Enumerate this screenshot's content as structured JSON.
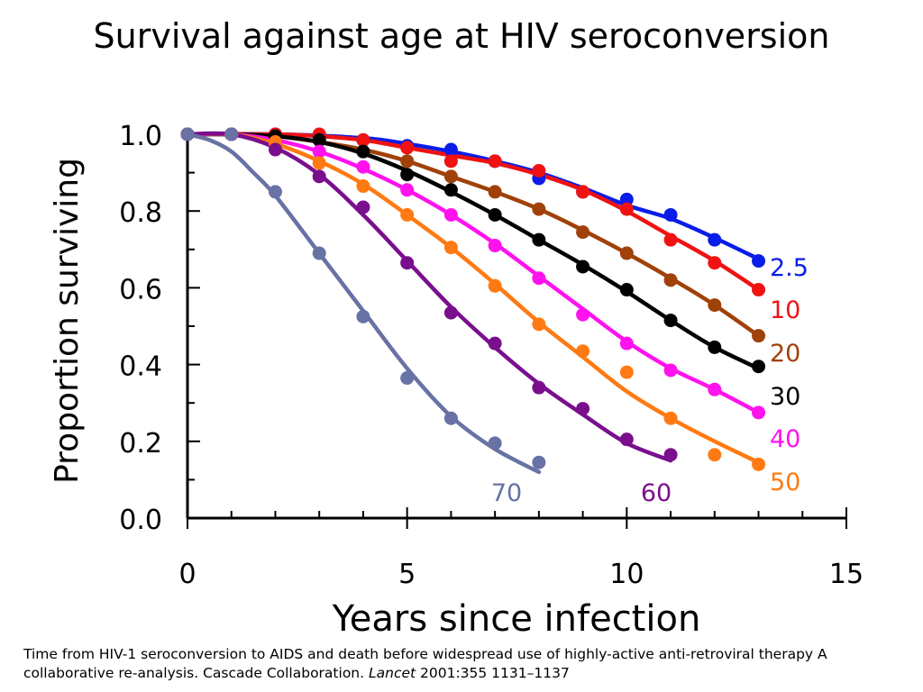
{
  "chart_data": {
    "type": "line",
    "title": "Survival against age at HIV seroconversion",
    "xlabel": "Years since infection",
    "ylabel": "Proportion surviving",
    "xlim": [
      0,
      15
    ],
    "ylim": [
      0,
      1.0
    ],
    "x_ticks": [
      "0",
      "5",
      "10",
      "15"
    ],
    "y_ticks": [
      "0.0",
      "0.2",
      "0.4",
      "0.6",
      "0.8",
      "1.0"
    ],
    "grid": false,
    "legend": "inline labels at line ends",
    "series": [
      {
        "name": "2.5",
        "color": "#0a1de8",
        "points": [
          [
            0,
            1.0
          ],
          [
            1,
            1.0
          ],
          [
            2,
            1.0
          ],
          [
            3,
            0.995
          ],
          [
            4,
            0.985
          ],
          [
            5,
            0.97
          ],
          [
            6,
            0.96
          ],
          [
            7,
            0.93
          ],
          [
            8,
            0.885
          ],
          [
            9,
            0.85
          ],
          [
            10,
            0.83
          ],
          [
            11,
            0.79
          ],
          [
            12,
            0.725
          ],
          [
            13,
            0.67
          ]
        ],
        "curve": [
          [
            0,
            1.0
          ],
          [
            2,
            1.0
          ],
          [
            4,
            0.99
          ],
          [
            5,
            0.975
          ],
          [
            6,
            0.955
          ],
          [
            7,
            0.93
          ],
          [
            8,
            0.9
          ],
          [
            9,
            0.86
          ],
          [
            10,
            0.815
          ],
          [
            11,
            0.78
          ],
          [
            12,
            0.73
          ],
          [
            13,
            0.675
          ]
        ]
      },
      {
        "name": "10",
        "color": "#f01212",
        "points": [
          [
            0,
            1.0
          ],
          [
            1,
            1.0
          ],
          [
            2,
            1.0
          ],
          [
            3,
            1.0
          ],
          [
            4,
            0.985
          ],
          [
            5,
            0.965
          ],
          [
            6,
            0.93
          ],
          [
            7,
            0.93
          ],
          [
            8,
            0.905
          ],
          [
            9,
            0.85
          ],
          [
            10,
            0.805
          ],
          [
            11,
            0.725
          ],
          [
            12,
            0.665
          ],
          [
            13,
            0.595
          ]
        ],
        "curve": [
          [
            0,
            1.0
          ],
          [
            2,
            1.0
          ],
          [
            3,
            0.995
          ],
          [
            4,
            0.985
          ],
          [
            5,
            0.965
          ],
          [
            6,
            0.945
          ],
          [
            7,
            0.925
          ],
          [
            8,
            0.895
          ],
          [
            9,
            0.855
          ],
          [
            10,
            0.8
          ],
          [
            11,
            0.735
          ],
          [
            12,
            0.67
          ],
          [
            13,
            0.595
          ]
        ]
      },
      {
        "name": "20",
        "color": "#a0410a",
        "points": [
          [
            0,
            1.0
          ],
          [
            1,
            1.0
          ],
          [
            2,
            0.995
          ],
          [
            3,
            0.985
          ],
          [
            4,
            0.955
          ],
          [
            5,
            0.93
          ],
          [
            6,
            0.89
          ],
          [
            7,
            0.85
          ],
          [
            8,
            0.805
          ],
          [
            9,
            0.745
          ],
          [
            10,
            0.69
          ],
          [
            11,
            0.62
          ],
          [
            12,
            0.555
          ],
          [
            13,
            0.475
          ]
        ],
        "curve": [
          [
            0,
            1.0
          ],
          [
            1,
            1.0
          ],
          [
            2,
            0.995
          ],
          [
            3,
            0.98
          ],
          [
            4,
            0.96
          ],
          [
            5,
            0.93
          ],
          [
            6,
            0.89
          ],
          [
            7,
            0.85
          ],
          [
            8,
            0.805
          ],
          [
            9,
            0.75
          ],
          [
            10,
            0.69
          ],
          [
            11,
            0.625
          ],
          [
            12,
            0.555
          ],
          [
            13,
            0.475
          ]
        ]
      },
      {
        "name": "30",
        "color": "#000000",
        "points": [
          [
            0,
            1.0
          ],
          [
            1,
            1.0
          ],
          [
            2,
            0.995
          ],
          [
            3,
            0.985
          ],
          [
            4,
            0.955
          ],
          [
            5,
            0.895
          ],
          [
            6,
            0.855
          ],
          [
            7,
            0.79
          ],
          [
            8,
            0.725
          ],
          [
            9,
            0.655
          ],
          [
            10,
            0.595
          ],
          [
            11,
            0.515
          ],
          [
            12,
            0.445
          ],
          [
            13,
            0.395
          ]
        ],
        "curve": [
          [
            0,
            1.0
          ],
          [
            1,
            1.0
          ],
          [
            2,
            0.995
          ],
          [
            3,
            0.98
          ],
          [
            4,
            0.95
          ],
          [
            5,
            0.905
          ],
          [
            6,
            0.85
          ],
          [
            7,
            0.79
          ],
          [
            8,
            0.725
          ],
          [
            9,
            0.66
          ],
          [
            10,
            0.59
          ],
          [
            11,
            0.515
          ],
          [
            12,
            0.445
          ],
          [
            13,
            0.39
          ]
        ]
      },
      {
        "name": "40",
        "color": "#ff12ee",
        "points": [
          [
            0,
            1.0
          ],
          [
            1,
            1.0
          ],
          [
            2,
            0.975
          ],
          [
            3,
            0.955
          ],
          [
            4,
            0.915
          ],
          [
            5,
            0.855
          ],
          [
            6,
            0.79
          ],
          [
            7,
            0.71
          ],
          [
            8,
            0.625
          ],
          [
            9,
            0.53
          ],
          [
            10,
            0.455
          ],
          [
            11,
            0.385
          ],
          [
            12,
            0.335
          ],
          [
            13,
            0.275
          ]
        ],
        "curve": [
          [
            0,
            1.0
          ],
          [
            1,
            1.0
          ],
          [
            2,
            0.985
          ],
          [
            3,
            0.955
          ],
          [
            4,
            0.91
          ],
          [
            5,
            0.855
          ],
          [
            6,
            0.79
          ],
          [
            7,
            0.715
          ],
          [
            8,
            0.63
          ],
          [
            9,
            0.545
          ],
          [
            10,
            0.46
          ],
          [
            11,
            0.39
          ],
          [
            12,
            0.335
          ],
          [
            13,
            0.275
          ]
        ]
      },
      {
        "name": "50",
        "color": "#ff7a12",
        "points": [
          [
            0,
            1.0
          ],
          [
            1,
            1.0
          ],
          [
            2,
            0.98
          ],
          [
            3,
            0.925
          ],
          [
            4,
            0.865
          ],
          [
            5,
            0.79
          ],
          [
            6,
            0.705
          ],
          [
            7,
            0.605
          ],
          [
            8,
            0.505
          ],
          [
            9,
            0.435
          ],
          [
            10,
            0.38
          ],
          [
            11,
            0.26
          ],
          [
            12,
            0.165
          ],
          [
            13,
            0.14
          ]
        ],
        "curve": [
          [
            0,
            1.0
          ],
          [
            1,
            1.0
          ],
          [
            2,
            0.975
          ],
          [
            3,
            0.93
          ],
          [
            4,
            0.87
          ],
          [
            5,
            0.79
          ],
          [
            6,
            0.705
          ],
          [
            7,
            0.61
          ],
          [
            8,
            0.51
          ],
          [
            9,
            0.42
          ],
          [
            10,
            0.33
          ],
          [
            11,
            0.26
          ],
          [
            12,
            0.2
          ],
          [
            13,
            0.145
          ]
        ]
      },
      {
        "name": "60",
        "color": "#7a0f8e",
        "points": [
          [
            0,
            1.0
          ],
          [
            1,
            1.0
          ],
          [
            2,
            0.96
          ],
          [
            3,
            0.89
          ],
          [
            4,
            0.81
          ],
          [
            5,
            0.665
          ],
          [
            6,
            0.535
          ],
          [
            7,
            0.455
          ],
          [
            8,
            0.34
          ],
          [
            9,
            0.285
          ],
          [
            10,
            0.205
          ],
          [
            11,
            0.165
          ]
        ],
        "curve": [
          [
            0,
            1.0
          ],
          [
            1,
            1.0
          ],
          [
            2,
            0.965
          ],
          [
            3,
            0.895
          ],
          [
            4,
            0.79
          ],
          [
            5,
            0.67
          ],
          [
            6,
            0.55
          ],
          [
            7,
            0.445
          ],
          [
            8,
            0.35
          ],
          [
            9,
            0.27
          ],
          [
            10,
            0.195
          ],
          [
            11,
            0.15
          ]
        ]
      },
      {
        "name": "70",
        "color": "#6872a4",
        "points": [
          [
            0,
            1.0
          ],
          [
            1,
            1.0
          ],
          [
            2,
            0.85
          ],
          [
            3,
            0.69
          ],
          [
            4,
            0.525
          ],
          [
            5,
            0.365
          ],
          [
            6,
            0.26
          ],
          [
            7,
            0.195
          ],
          [
            8,
            0.145
          ]
        ],
        "curve": [
          [
            0,
            1.0
          ],
          [
            0.5,
            0.985
          ],
          [
            1,
            0.955
          ],
          [
            1.5,
            0.9
          ],
          [
            2,
            0.84
          ],
          [
            3,
            0.69
          ],
          [
            4,
            0.54
          ],
          [
            5,
            0.39
          ],
          [
            6,
            0.265
          ],
          [
            7,
            0.18
          ],
          [
            8,
            0.12
          ]
        ]
      }
    ]
  },
  "citation": {
    "text_before": "Time from HIV-1 seroconversion to AIDS and death before widespread use of highly-active anti-retroviral therapy A collaborative re-analysis. Cascade Collaboration. ",
    "journal": "Lancet",
    "text_after": " 2001:355 1131–1137"
  }
}
